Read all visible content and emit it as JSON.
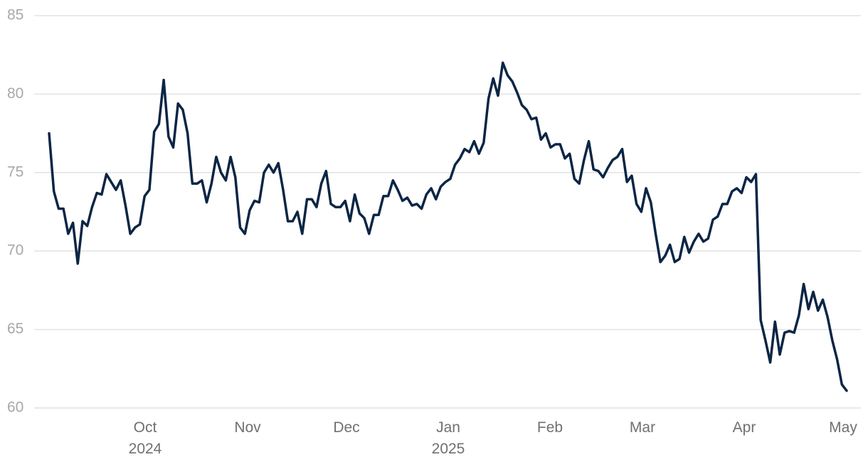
{
  "chart_data": {
    "type": "line",
    "xtick_labels": [
      "Oct 2024",
      "Nov",
      "Dec",
      "Jan 2025",
      "Feb",
      "Mar",
      "Apr",
      "May"
    ],
    "series": [
      {
        "color": "#0b2545",
        "values": [
          77.5,
          73.8,
          72.7,
          72.7,
          71.1,
          71.8,
          69.2,
          71.9,
          71.6,
          72.8,
          73.7,
          73.6,
          74.9,
          74.4,
          73.9,
          74.5,
          72.9,
          71.1,
          71.5,
          71.7,
          73.5,
          73.9,
          77.6,
          78.1,
          80.9,
          77.3,
          76.6,
          79.4,
          79.0,
          77.5,
          74.3,
          74.3,
          74.5,
          73.1,
          74.3,
          76.0,
          75.0,
          74.5,
          76.0,
          74.7,
          71.5,
          71.1,
          72.6,
          73.2,
          73.1,
          75.0,
          75.5,
          75.0,
          75.6,
          73.9,
          71.9,
          71.9,
          72.5,
          71.1,
          73.3,
          73.3,
          72.8,
          74.3,
          75.1,
          73.0,
          72.8,
          72.8,
          73.2,
          71.9,
          73.6,
          72.4,
          72.1,
          71.1,
          72.3,
          72.3,
          73.5,
          73.5,
          74.5,
          73.9,
          73.2,
          73.4,
          72.9,
          73.0,
          72.7,
          73.6,
          74.0,
          73.3,
          74.1,
          74.4,
          74.6,
          75.5,
          75.9,
          76.5,
          76.3,
          77.0,
          76.2,
          76.9,
          79.7,
          81.0,
          79.9,
          82.0,
          81.2,
          80.8,
          80.1,
          79.3,
          79.0,
          78.4,
          78.5,
          77.1,
          77.5,
          76.6,
          76.8,
          76.8,
          75.9,
          76.2,
          74.6,
          74.3,
          75.8,
          77.0,
          75.2,
          75.1,
          74.7,
          75.3,
          75.8,
          76.0,
          76.5,
          74.4,
          74.8,
          73.0,
          72.5,
          74.0,
          73.1,
          71.1,
          69.3,
          69.7,
          70.4,
          69.3,
          69.5,
          70.9,
          69.9,
          70.6,
          71.1,
          70.6,
          70.8,
          72.0,
          72.2,
          73.0,
          73.0,
          73.8,
          74.0,
          73.7,
          74.7,
          74.4,
          74.9,
          65.6,
          64.3,
          62.9,
          65.5,
          63.4,
          64.8,
          64.9,
          64.8,
          65.9,
          67.9,
          66.3,
          67.4,
          66.2,
          66.9,
          65.8,
          64.3,
          63.1,
          61.5,
          61.1
        ]
      }
    ],
    "ylim": [
      60,
      85
    ],
    "yticks": [
      60,
      65,
      70,
      75,
      80,
      85
    ],
    "grid": true
  }
}
